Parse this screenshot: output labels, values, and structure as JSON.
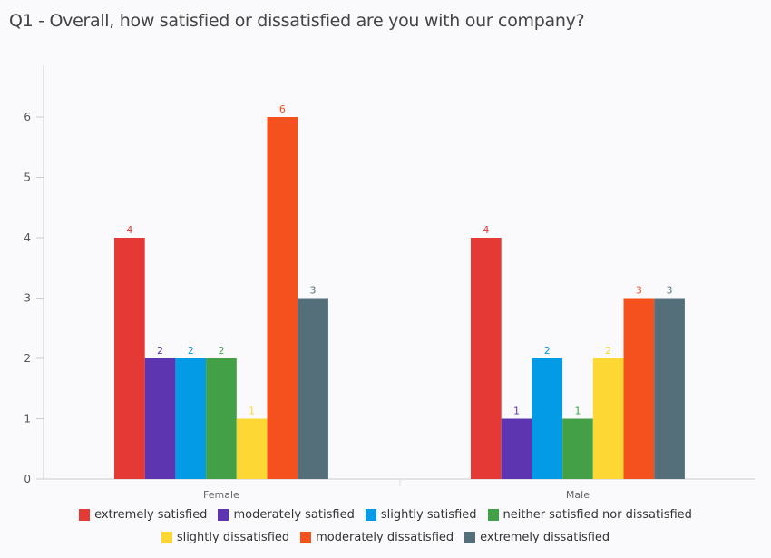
{
  "chart_data": {
    "type": "bar",
    "title": "Q1 - Overall, how satisfied or dissatisfied are you with our company?",
    "categories": [
      "Female",
      "Male"
    ],
    "ylim": [
      0,
      6.6
    ],
    "yticks": [
      0,
      1,
      2,
      3,
      4,
      5,
      6
    ],
    "grid": false,
    "legend_position": "bottom",
    "series": [
      {
        "name": "extremely satisfied",
        "color": "#e53935",
        "values": [
          4,
          4
        ]
      },
      {
        "name": "moderately satisfied",
        "color": "#5e35b1",
        "values": [
          2,
          1
        ]
      },
      {
        "name": "slightly satisfied",
        "color": "#039be5",
        "values": [
          2,
          2
        ]
      },
      {
        "name": "neither satisfied nor dissatisfied",
        "color": "#43a047",
        "values": [
          2,
          1
        ]
      },
      {
        "name": "slightly dissatisfied",
        "color": "#fdd835",
        "values": [
          1,
          2
        ]
      },
      {
        "name": "moderately dissatisfied",
        "color": "#f4511e",
        "values": [
          6,
          3
        ]
      },
      {
        "name": "extremely dissatisfied",
        "color": "#546e7a",
        "values": [
          3,
          3
        ]
      }
    ]
  }
}
